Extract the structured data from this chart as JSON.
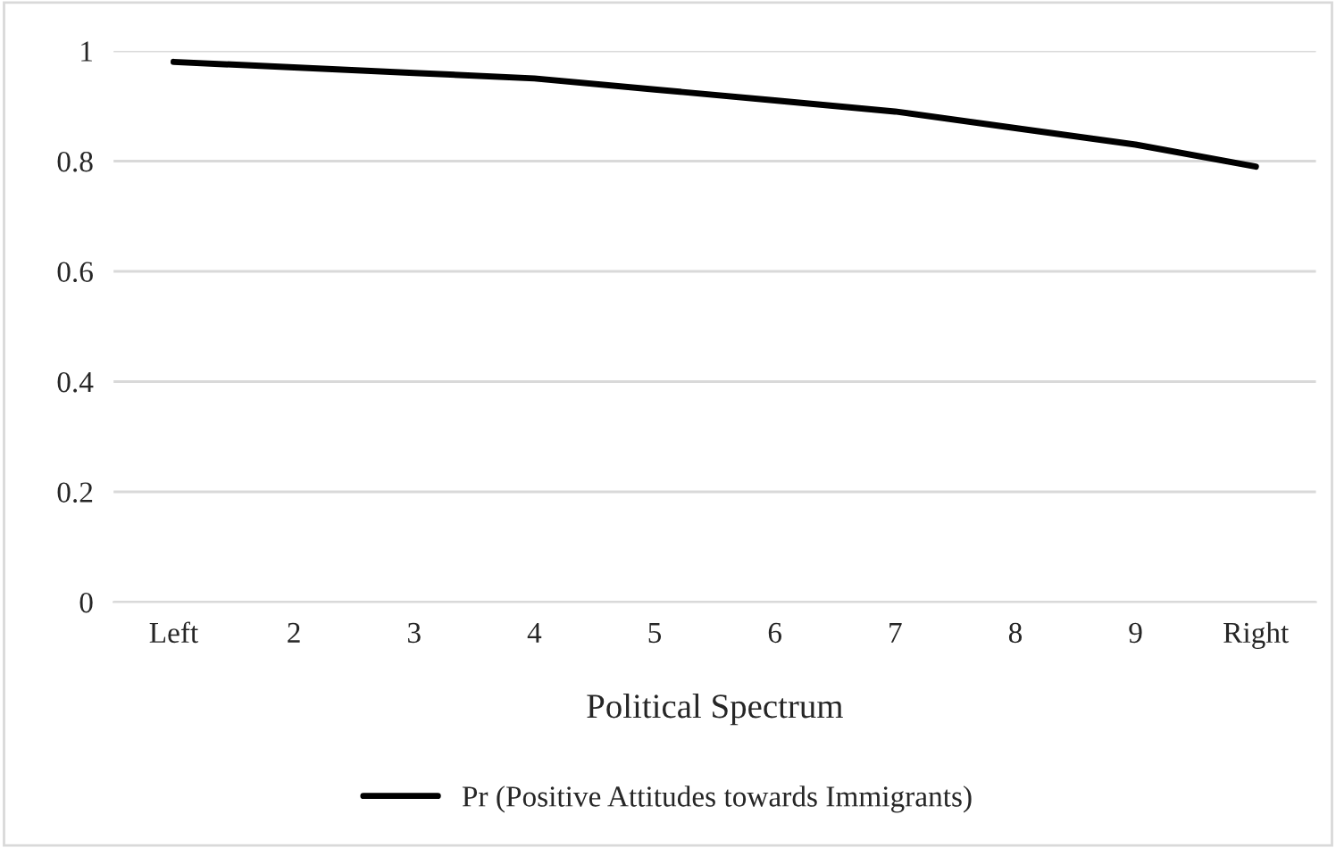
{
  "chart_data": {
    "type": "line",
    "xlabel": "Political Spectrum",
    "categories": [
      "Left",
      "2",
      "3",
      "4",
      "5",
      "6",
      "7",
      "8",
      "9",
      "Right"
    ],
    "series": [
      {
        "name": "Pr (Positive Attitudes towards Immigrants)",
        "color": "#000000",
        "values": [
          0.98,
          0.97,
          0.96,
          0.95,
          0.93,
          0.91,
          0.89,
          0.86,
          0.83,
          0.79
        ]
      }
    ],
    "ylim": [
      0,
      1
    ],
    "yticks": [
      0,
      0.2,
      0.4,
      0.6,
      0.8,
      1
    ],
    "grid": "y",
    "legend": "bottom",
    "marker": "none",
    "line_style": "solid"
  }
}
